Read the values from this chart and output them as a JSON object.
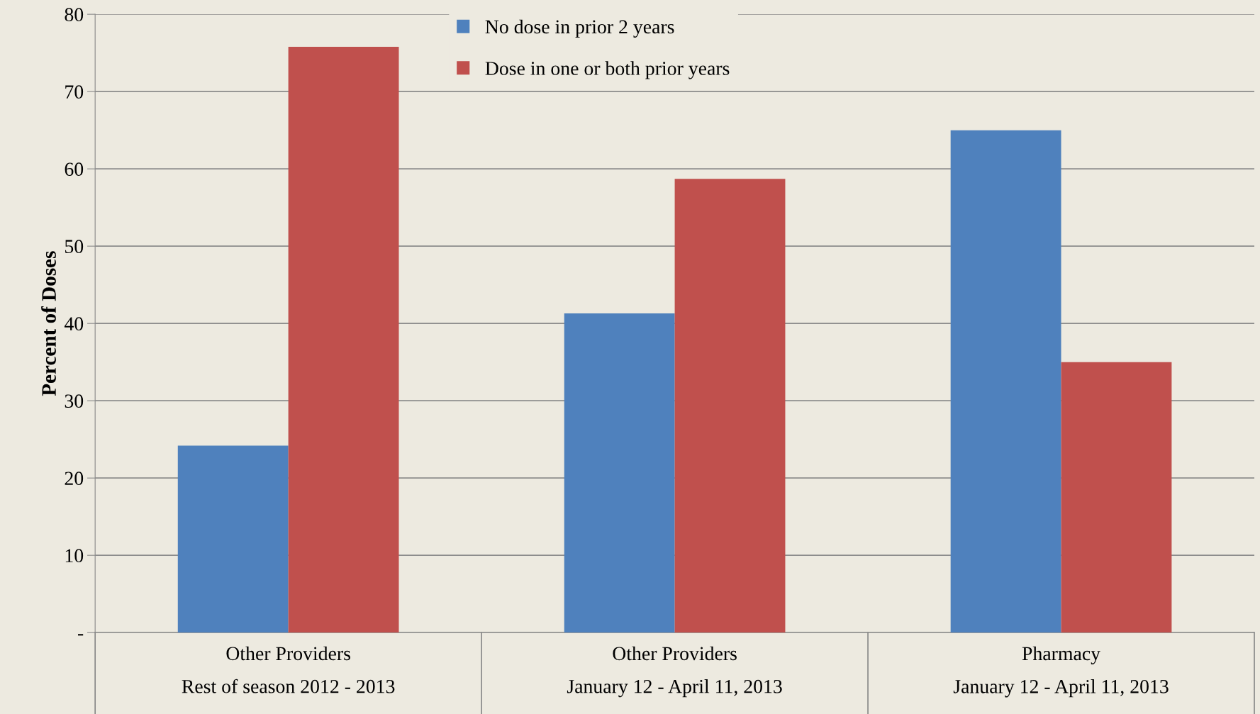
{
  "chart_data": {
    "type": "bar",
    "ylabel": "Percent of Doses",
    "categories": [
      "Other Providers\nRest of season 2012 - 2013",
      "Other Providers\nJanuary 12 - April 11, 2013",
      "Pharmacy\nJanuary 12 - April 11, 2013"
    ],
    "series": [
      {
        "name": "No dose in prior 2 years",
        "color": "#4f81bd",
        "values": [
          24.2,
          41.3,
          65.0
        ]
      },
      {
        "name": "Dose in one or both prior years",
        "color": "#c0504d",
        "values": [
          75.8,
          58.7,
          35.0
        ]
      }
    ],
    "ylim": [
      0,
      80
    ],
    "yticks": [
      {
        "value": 0,
        "label": "-"
      },
      10,
      20,
      30,
      40,
      50,
      60,
      70,
      80
    ],
    "grid": "y",
    "legend": "top"
  }
}
